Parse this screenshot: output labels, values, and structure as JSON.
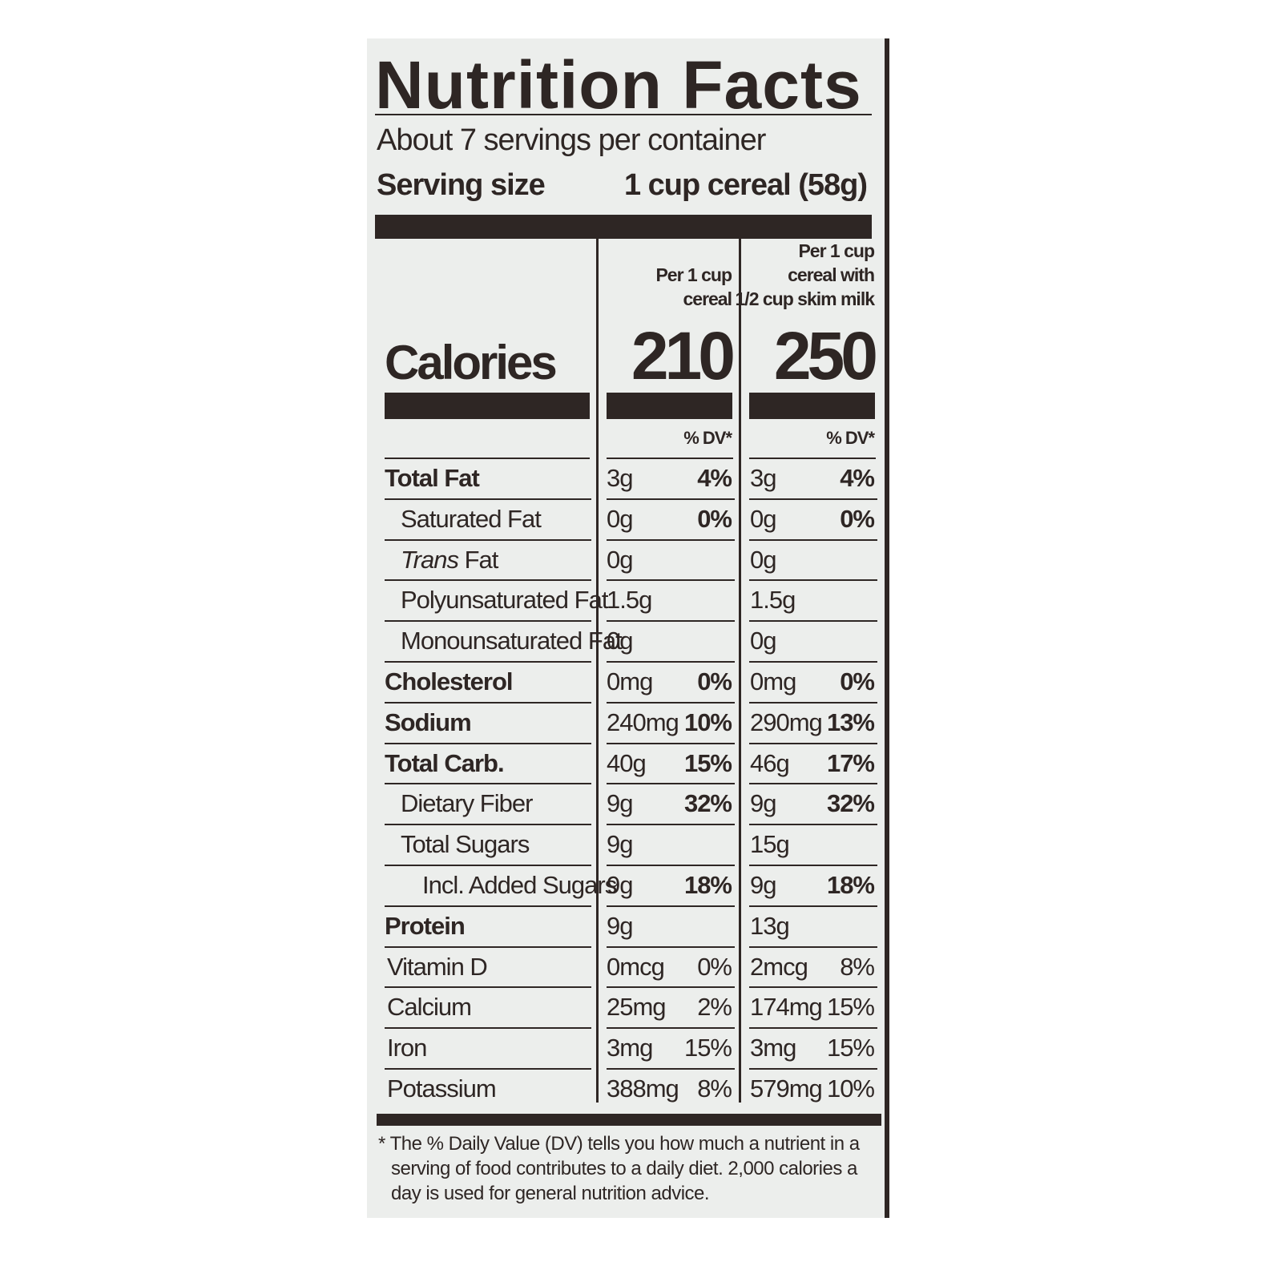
{
  "label": {
    "title": "Nutrition Facts",
    "servings": "About 7 servings per container",
    "serving_size": {
      "label": "Serving size",
      "value": "1 cup cereal (58g)"
    },
    "column_headers": [
      [
        "Per 1 cup",
        "cereal"
      ],
      [
        "Per 1 cup",
        "cereal with",
        "1/2 cup skim milk"
      ]
    ],
    "calories": {
      "label": "Calories",
      "values": [
        "210",
        "250"
      ]
    },
    "dv_headers": [
      "% DV*",
      "% DV*"
    ],
    "rows": [
      {
        "name": "Total Fat",
        "style": "bold",
        "cells": [
          {
            "amount": "3g",
            "dv": "4%"
          },
          {
            "amount": "3g",
            "dv": "4%"
          }
        ]
      },
      {
        "name": "Saturated Fat",
        "style": "sub",
        "cells": [
          {
            "amount": "0g",
            "dv": "0%"
          },
          {
            "amount": "0g",
            "dv": "0%"
          }
        ]
      },
      {
        "name_italic": "Trans",
        "name": "Fat",
        "style": "sub",
        "cells": [
          {
            "amount": "0g"
          },
          {
            "amount": "0g"
          }
        ]
      },
      {
        "name": "Polyunsaturated Fat",
        "style": "sub",
        "cells": [
          {
            "amount": "1.5g"
          },
          {
            "amount": "1.5g"
          }
        ]
      },
      {
        "name": "Monounsaturated Fat",
        "style": "sub",
        "cells": [
          {
            "amount": "0g"
          },
          {
            "amount": "0g"
          }
        ]
      },
      {
        "name": "Cholesterol",
        "style": "bold",
        "cells": [
          {
            "amount": "0mg",
            "dv": "0%"
          },
          {
            "amount": "0mg",
            "dv": "0%"
          }
        ]
      },
      {
        "name": "Sodium",
        "style": "bold",
        "cells": [
          {
            "amount": "240mg",
            "dv": "10%"
          },
          {
            "amount": "290mg",
            "dv": "13%"
          }
        ]
      },
      {
        "name": "Total Carb.",
        "style": "bold",
        "cells": [
          {
            "amount": "40g",
            "dv": "15%"
          },
          {
            "amount": "46g",
            "dv": "17%"
          }
        ]
      },
      {
        "name": "Dietary Fiber",
        "style": "sub",
        "cells": [
          {
            "amount": "9g",
            "dv": "32%"
          },
          {
            "amount": "9g",
            "dv": "32%"
          }
        ]
      },
      {
        "name": "Total Sugars",
        "style": "sub",
        "cells": [
          {
            "amount": "9g"
          },
          {
            "amount": "15g"
          }
        ]
      },
      {
        "name": "Incl. Added Sugars",
        "style": "sub2",
        "cells": [
          {
            "amount": "9g",
            "dv": "18%"
          },
          {
            "amount": "9g",
            "dv": "18%"
          }
        ]
      },
      {
        "name": "Protein",
        "style": "bold",
        "cells": [
          {
            "amount": "9g"
          },
          {
            "amount": "13g"
          }
        ]
      },
      {
        "name": "Vitamin D",
        "style": "plain",
        "cells": [
          {
            "amount": "0mcg",
            "dv": "0%"
          },
          {
            "amount": "2mcg",
            "dv": "8%"
          }
        ]
      },
      {
        "name": "Calcium",
        "style": "plain",
        "cells": [
          {
            "amount": "25mg",
            "dv": "2%"
          },
          {
            "amount": "174mg",
            "dv": "15%"
          }
        ]
      },
      {
        "name": "Iron",
        "style": "plain",
        "cells": [
          {
            "amount": "3mg",
            "dv": "15%"
          },
          {
            "amount": "3mg",
            "dv": "15%"
          }
        ]
      },
      {
        "name": "Potassium",
        "style": "plain",
        "cells": [
          {
            "amount": "388mg",
            "dv": "8%"
          },
          {
            "amount": "579mg",
            "dv": "10%"
          }
        ]
      }
    ],
    "footnote": "* The % Daily Value (DV) tells you how much a nutrient in a serving of food contributes to a daily diet. 2,000 calories a day is used for general nutrition advice."
  }
}
